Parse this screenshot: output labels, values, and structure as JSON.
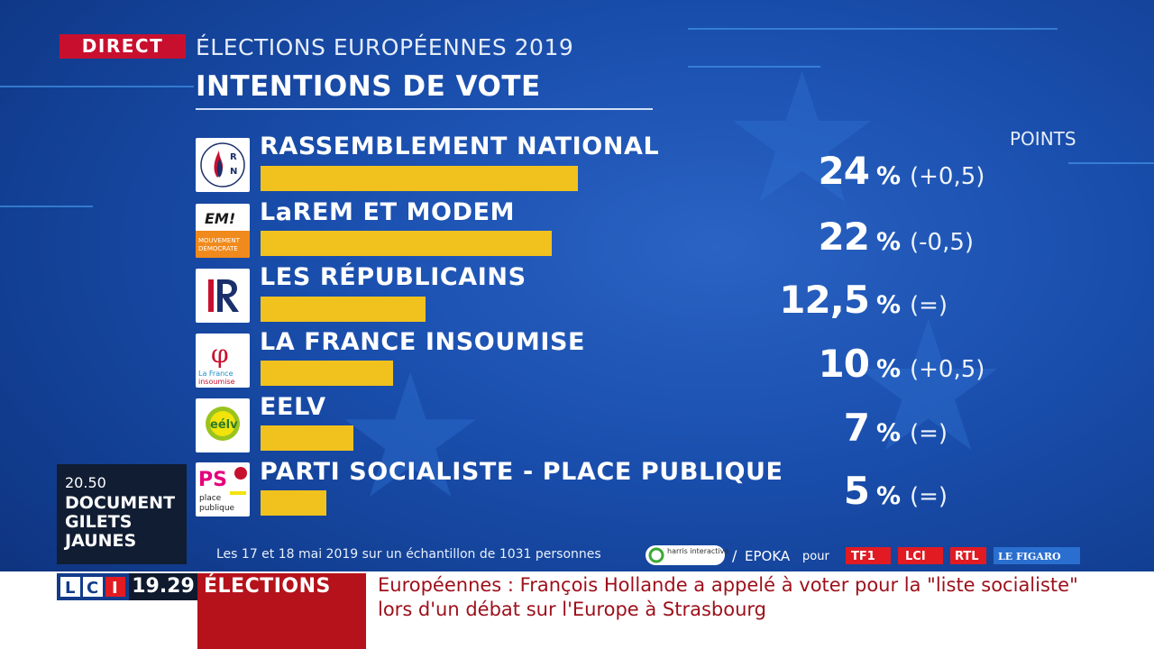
{
  "header": {
    "live_badge": "DIRECT",
    "subtitle": "ÉLECTIONS EUROPÉENNES 2019",
    "title": "INTENTIONS DE VOTE",
    "points_label": "POINTS"
  },
  "chart_data": {
    "type": "bar",
    "orientation": "horizontal",
    "title": "INTENTIONS DE VOTE",
    "categories": [
      "RASSEMBLEMENT NATIONAL",
      "LaREM ET MODEM",
      "LES RÉPUBLICAINS",
      "LA FRANCE INSOUMISE",
      "EELV",
      "PARTI SOCIALISTE - PLACE PUBLIQUE"
    ],
    "values": [
      24,
      22,
      12.5,
      10,
      7,
      5
    ],
    "value_labels": [
      "24",
      "22",
      "12,5",
      "10",
      "7",
      "5"
    ],
    "changes": [
      "(+0,5)",
      "(-0,5)",
      "(=)",
      "(+0,5)",
      "(=)",
      "(=)"
    ],
    "unit": "%",
    "xlim": [
      0,
      24
    ],
    "bar_color": "#f1c21e",
    "grid": false,
    "legend": "none"
  },
  "parties": [
    {
      "logo_icon": "rn-flame-logo",
      "logo_text": "RN"
    },
    {
      "logo_icon": "em-modem-logo",
      "logo_text": "EM!",
      "logo_subtext": "MOUVEMENT DÉMOCRATE"
    },
    {
      "logo_icon": "lr-logo",
      "logo_text": "LR"
    },
    {
      "logo_icon": "lfi-phi-logo",
      "logo_text": "φ",
      "logo_subtext": "La France insoumise"
    },
    {
      "logo_icon": "eelv-sun-logo",
      "logo_text": "eélv"
    },
    {
      "logo_icon": "ps-rose-logo",
      "logo_text": "PS",
      "logo_subtext": "place publique"
    }
  ],
  "footer": {
    "source_note": "Les 17 et 18 mai 2019 sur un échantillon de 1031 personnes",
    "pollster": "harris interactive",
    "partner": "EPOKA",
    "pour": "pour",
    "sponsors": [
      "TF1",
      "LCI",
      "RTL",
      "LE FIGARO"
    ]
  },
  "program": {
    "time": "20.50",
    "title": "DOCUMENT GILETS JAUNES"
  },
  "ticker": {
    "channel": "LCI",
    "clock": "19.29",
    "section": "ÉLECTIONS",
    "headline": "Européennes : François Hollande a appelé à voter pour la \"liste socialiste\" lors d'un débat sur l'Europe à Strasbourg"
  },
  "colors": {
    "background": "#1a4fae",
    "bar": "#f1c21e",
    "direct_red": "#c8102e",
    "section_red": "#b5121b",
    "headline_red": "#9d0f1a",
    "lci_blue": "#123b8a"
  }
}
